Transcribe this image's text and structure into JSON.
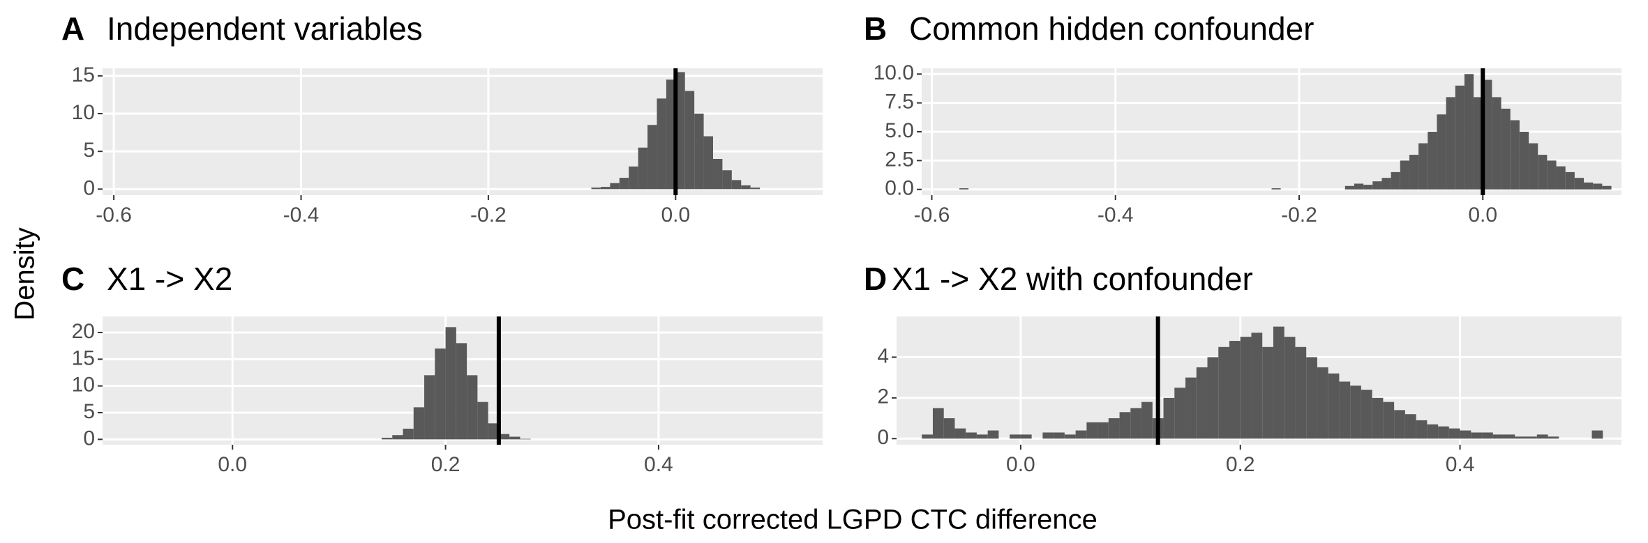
{
  "figure": {
    "ylabel": "Density",
    "xlabel": "Post-fit corrected LGPD CTC difference"
  },
  "chart_data": [
    {
      "type": "histogram",
      "tag": "A",
      "title": "Independent variables",
      "color": "#595959",
      "vline": 0,
      "grid": true,
      "bins": [
        -0.09,
        -0.08,
        -0.07,
        -0.06,
        -0.05,
        -0.04,
        -0.03,
        -0.02,
        -0.01,
        0,
        0.01,
        0.02,
        0.03,
        0.04,
        0.05,
        0.06,
        0.07,
        0.08,
        0.09
      ],
      "values": [
        0.2,
        0.3,
        0.8,
        1.5,
        3,
        5.5,
        8.5,
        12,
        14.5,
        15.5,
        13,
        10,
        7,
        4,
        2.5,
        1.2,
        0.5,
        0.2
      ],
      "xlim": [
        -0.612,
        0.157
      ],
      "xticks": [
        -0.6,
        -0.4,
        -0.2,
        {
          "value": 0,
          "label": "0.0"
        }
      ],
      "ylim": [
        -0.8,
        16
      ],
      "yticks": [
        0,
        5,
        10,
        15
      ]
    },
    {
      "type": "histogram",
      "tag": "B",
      "title": "Common hidden confounder",
      "color": "#595959",
      "vline": 0,
      "grid": true,
      "bins": [
        -0.57,
        -0.56,
        -0.55,
        -0.54,
        -0.53,
        -0.52,
        -0.51,
        -0.5,
        -0.49,
        -0.48,
        -0.47,
        -0.46,
        -0.45,
        -0.44,
        -0.43,
        -0.42,
        -0.41,
        -0.4,
        -0.39,
        -0.38,
        -0.37,
        -0.36,
        -0.35,
        -0.34,
        -0.33,
        -0.32,
        -0.31,
        -0.3,
        -0.29,
        -0.28,
        -0.27,
        -0.26,
        -0.25,
        -0.24,
        -0.23,
        -0.22,
        -0.21,
        -0.2,
        -0.19,
        -0.18,
        -0.17,
        -0.16,
        -0.15,
        -0.14,
        -0.13,
        -0.12,
        -0.11,
        -0.1,
        -0.09,
        -0.08,
        -0.07,
        -0.06,
        -0.05,
        -0.04,
        -0.03,
        -0.02,
        -0.01,
        0,
        0.01,
        0.02,
        0.03,
        0.04,
        0.05,
        0.06,
        0.07,
        0.08,
        0.09,
        0.1,
        0.11,
        0.12,
        0.13,
        0.14
      ],
      "values": [
        0.1,
        0,
        0,
        0,
        0,
        0,
        0,
        0,
        0,
        0,
        0,
        0,
        0,
        0,
        0,
        0,
        0,
        0,
        0,
        0,
        0,
        0,
        0,
        0,
        0,
        0,
        0,
        0,
        0,
        0,
        0,
        0,
        0,
        0,
        0.1,
        0,
        0,
        0,
        0,
        0,
        0,
        0,
        0.3,
        0.5,
        0.4,
        0.7,
        1,
        1.5,
        2.5,
        3,
        4,
        5,
        6.5,
        8,
        9,
        10,
        8,
        9.5,
        8,
        7,
        6,
        5,
        4,
        3,
        2.5,
        2,
        1.5,
        1,
        0.6,
        0.5,
        0.3
      ],
      "xlim": [
        -0.611,
        0.151
      ],
      "xticks": [
        -0.6,
        -0.4,
        -0.2,
        {
          "value": 0,
          "label": "0.0"
        }
      ],
      "ylim": [
        -0.5,
        10.5
      ],
      "yticks": [
        {
          "value": 0,
          "label": "0.0"
        },
        2.5,
        {
          "value": 5,
          "label": "5.0"
        },
        7.5,
        {
          "value": 10,
          "label": "10.0"
        }
      ]
    },
    {
      "type": "histogram",
      "tag": "C",
      "title": "X1 -> X2",
      "color": "#595959",
      "vline": 0.25,
      "grid": true,
      "bins": [
        0.14,
        0.15,
        0.16,
        0.17,
        0.18,
        0.19,
        0.2,
        0.21,
        0.22,
        0.23,
        0.24,
        0.25,
        0.26,
        0.27,
        0.28
      ],
      "values": [
        0.3,
        0.8,
        2,
        6,
        12,
        17,
        21,
        18,
        12,
        7,
        3,
        1,
        0.5,
        0.1
      ],
      "xlim": [
        -0.122,
        0.554
      ],
      "xticks": [
        {
          "value": 0,
          "label": "0.0"
        },
        0.2,
        0.4
      ],
      "ylim": [
        -1,
        23
      ],
      "yticks": [
        0,
        5,
        10,
        15,
        20
      ]
    },
    {
      "type": "histogram",
      "tag": "D",
      "title": "X1 -> X2 with confounder",
      "color": "#595959",
      "vline": 0.125,
      "grid": true,
      "bins": [
        -0.09,
        -0.08,
        -0.07,
        -0.06,
        -0.05,
        -0.04,
        -0.03,
        -0.02,
        -0.01,
        0,
        0.01,
        0.02,
        0.03,
        0.04,
        0.05,
        0.06,
        0.07,
        0.08,
        0.09,
        0.1,
        0.11,
        0.12,
        0.13,
        0.14,
        0.15,
        0.16,
        0.17,
        0.18,
        0.19,
        0.2,
        0.21,
        0.22,
        0.23,
        0.24,
        0.25,
        0.26,
        0.27,
        0.28,
        0.29,
        0.3,
        0.31,
        0.32,
        0.33,
        0.34,
        0.35,
        0.36,
        0.37,
        0.38,
        0.39,
        0.4,
        0.41,
        0.42,
        0.43,
        0.44,
        0.45,
        0.46,
        0.47,
        0.48,
        0.49,
        0.5,
        0.51,
        0.52,
        0.53
      ],
      "values": [
        0.2,
        1.5,
        1,
        0.5,
        0.3,
        0.2,
        0.4,
        0,
        0.2,
        0.2,
        0,
        0.3,
        0.3,
        0.2,
        0.4,
        0.8,
        0.8,
        1,
        1.3,
        1.5,
        1.8,
        1,
        2,
        2.5,
        3,
        3.5,
        4,
        4.5,
        4.8,
        5,
        5.2,
        4.5,
        5.5,
        5,
        4.5,
        4,
        3.5,
        3.2,
        2.8,
        2.6,
        2.4,
        2,
        1.8,
        1.4,
        1.2,
        0.9,
        0.7,
        0.6,
        0.5,
        0.4,
        0.3,
        0.3,
        0.2,
        0.2,
        0.1,
        0.1,
        0.2,
        0.1,
        0,
        0,
        0,
        0.4
      ],
      "xlim": [
        -0.113,
        0.547
      ],
      "xticks": [
        {
          "value": 0,
          "label": "0.0"
        },
        0.2,
        0.4
      ],
      "ylim": [
        -0.3,
        6
      ],
      "yticks": [
        0,
        2,
        4
      ]
    }
  ]
}
